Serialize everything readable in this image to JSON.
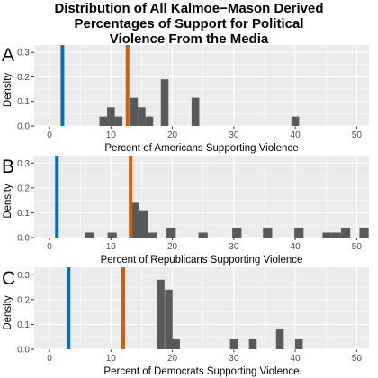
{
  "title_lines": [
    "Distribution of All Kalmoe−Mason Derived",
    "Percentages of Support for Political",
    "Violence From the Media"
  ],
  "colors": {
    "panel_bg": "#ebebeb",
    "grid": "#ffffff",
    "bar": "#595959",
    "blue_line": "#0072b2",
    "orange_line": "#d55e00"
  },
  "chart_data": [
    {
      "type": "bar",
      "panel_label": "A",
      "title": "",
      "xlabel": "Percent of Americans Supporting Violence",
      "ylabel": "Density",
      "xlim": [
        -2.5,
        52
      ],
      "ylim": [
        0,
        0.33
      ],
      "x_ticks": [
        0,
        10,
        20,
        30,
        40,
        50
      ],
      "y_ticks": [
        0.0,
        0.1,
        0.2,
        0.3
      ],
      "y_tick_labels": [
        "0.0",
        "0.1",
        "0.2",
        "0.3"
      ],
      "bin_width": 1.25,
      "bins": [
        {
          "x": 8.75,
          "density": 0.038
        },
        {
          "x": 10.0,
          "density": 0.076
        },
        {
          "x": 11.25,
          "density": 0.038
        },
        {
          "x": 13.75,
          "density": 0.115
        },
        {
          "x": 15.0,
          "density": 0.076
        },
        {
          "x": 16.25,
          "density": 0.038
        },
        {
          "x": 18.75,
          "density": 0.19
        },
        {
          "x": 23.75,
          "density": 0.115
        },
        {
          "x": 40.0,
          "density": 0.038
        }
      ],
      "vlines": [
        {
          "x": 2.1,
          "color": "#0072b2"
        },
        {
          "x": 12.7,
          "color": "#d55e00"
        }
      ]
    },
    {
      "type": "bar",
      "panel_label": "B",
      "title": "",
      "xlabel": "Percent of Republicans Supporting Violence",
      "ylabel": "Density",
      "xlim": [
        -2.5,
        52
      ],
      "ylim": [
        0,
        0.33
      ],
      "x_ticks": [
        0,
        10,
        20,
        30,
        40,
        50
      ],
      "y_ticks": [
        0.0,
        0.1,
        0.2,
        0.3
      ],
      "y_tick_labels": [
        "0.0",
        "0.1",
        "0.2",
        "0.3"
      ],
      "bin_width": 1.5,
      "bins": [
        {
          "x": 6.5,
          "density": 0.02
        },
        {
          "x": 10.2,
          "density": 0.02
        },
        {
          "x": 13.8,
          "density": 0.14
        },
        {
          "x": 15.3,
          "density": 0.11
        },
        {
          "x": 16.8,
          "density": 0.02
        },
        {
          "x": 19.8,
          "density": 0.04
        },
        {
          "x": 25.0,
          "density": 0.02
        },
        {
          "x": 30.5,
          "density": 0.04
        },
        {
          "x": 35.5,
          "density": 0.04
        },
        {
          "x": 40.6,
          "density": 0.04
        },
        {
          "x": 45.2,
          "density": 0.02
        },
        {
          "x": 46.7,
          "density": 0.02
        },
        {
          "x": 48.2,
          "density": 0.04
        },
        {
          "x": 51.2,
          "density": 0.04
        }
      ],
      "vlines": [
        {
          "x": 1.2,
          "color": "#0072b2"
        },
        {
          "x": 13.2,
          "color": "#d55e00"
        }
      ]
    },
    {
      "type": "bar",
      "panel_label": "C",
      "title": "",
      "xlabel": "Percent of Democrats Supporting Violence",
      "ylabel": "Density",
      "xlim": [
        -2.5,
        52
      ],
      "ylim": [
        0,
        0.33
      ],
      "x_ticks": [
        0,
        10,
        20,
        30,
        40,
        50
      ],
      "y_ticks": [
        0.0,
        0.1,
        0.2,
        0.3
      ],
      "y_tick_labels": [
        "0.0",
        "0.1",
        "0.2",
        "0.3"
      ],
      "bin_width": 1.25,
      "bins": [
        {
          "x": 18.1,
          "density": 0.28
        },
        {
          "x": 19.4,
          "density": 0.24
        },
        {
          "x": 20.6,
          "density": 0.04
        },
        {
          "x": 30.0,
          "density": 0.04
        },
        {
          "x": 33.1,
          "density": 0.04
        },
        {
          "x": 37.5,
          "density": 0.08
        },
        {
          "x": 40.6,
          "density": 0.04
        }
      ],
      "vlines": [
        {
          "x": 3.1,
          "color": "#0072b2"
        },
        {
          "x": 12.0,
          "color": "#d55e00"
        }
      ]
    }
  ]
}
